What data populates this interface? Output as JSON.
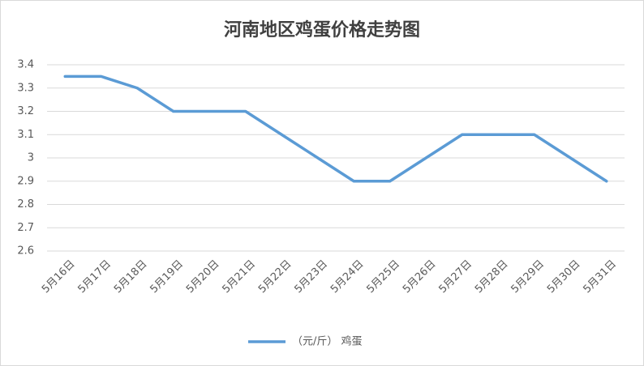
{
  "chart_data": {
    "type": "line",
    "title": "河南地区鸡蛋价格走势图",
    "categories": [
      "5月16日",
      "5月17日",
      "5月18日",
      "5月19日",
      "5月20日",
      "5月21日",
      "5月22日",
      "5月23日",
      "5月24日",
      "5月25日",
      "5月26日",
      "5月27日",
      "5月28日",
      "5月29日",
      "5月30日",
      "5月31日"
    ],
    "series": [
      {
        "name": "（元/斤） 鸡蛋",
        "color": "#5b9bd5",
        "values": [
          3.35,
          3.35,
          3.3,
          3.2,
          3.2,
          3.2,
          3.1,
          3.0,
          2.9,
          2.9,
          3.0,
          3.1,
          3.1,
          3.1,
          3.0,
          2.9
        ]
      }
    ],
    "ylim": [
      2.6,
      3.4
    ],
    "yticks": [
      2.6,
      2.7,
      2.8,
      2.9,
      3,
      3.1,
      3.2,
      3.3,
      3.4
    ],
    "grid": true,
    "legend": "bottom"
  }
}
